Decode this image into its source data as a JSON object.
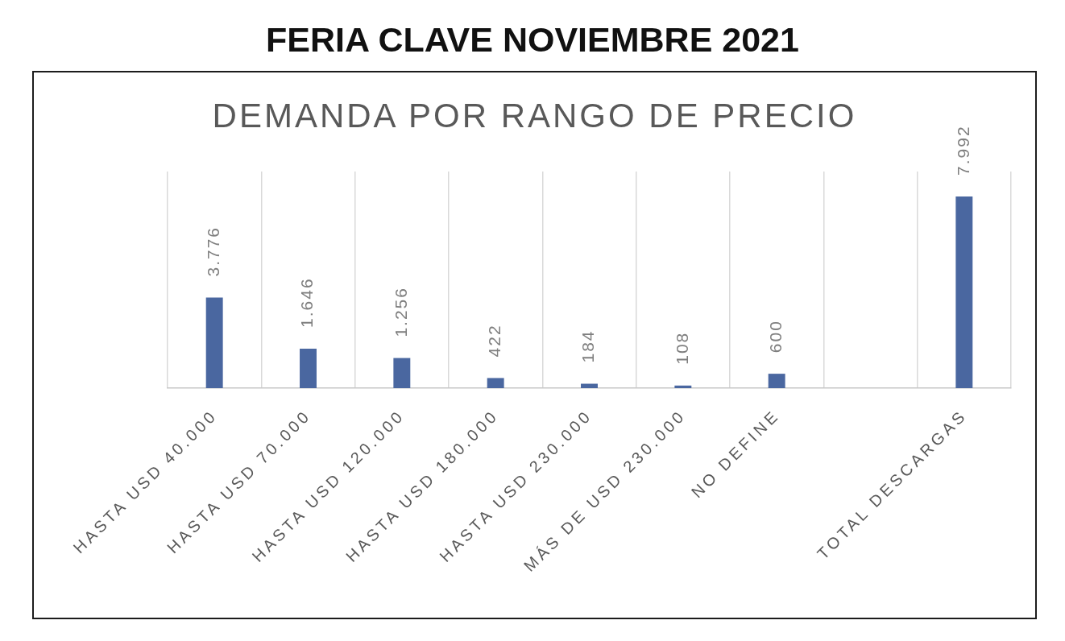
{
  "chart_data": {
    "type": "bar",
    "title": "FERIA CLAVE NOVIEMBRE 2021",
    "subtitle": "DEMANDA POR RANGO DE PRECIO",
    "categories": [
      "HASTA USD 40.000",
      "HASTA USD 70.000",
      "HASTA USD 120.000",
      "HASTA USD 180.000",
      "HASTA USD 230.000",
      "MÁS DE USD 230.000",
      "NO DEFINE",
      null,
      "TOTAL DESCARGAS"
    ],
    "values": [
      3776,
      1646,
      1256,
      422,
      184,
      108,
      600,
      null,
      7992
    ],
    "value_labels": [
      "3.776",
      "1.646",
      "1.256",
      "422",
      "184",
      "108",
      "600",
      null,
      "7.992"
    ],
    "color": "#4a67a0",
    "grid": "x",
    "tick_labels": "x"
  }
}
